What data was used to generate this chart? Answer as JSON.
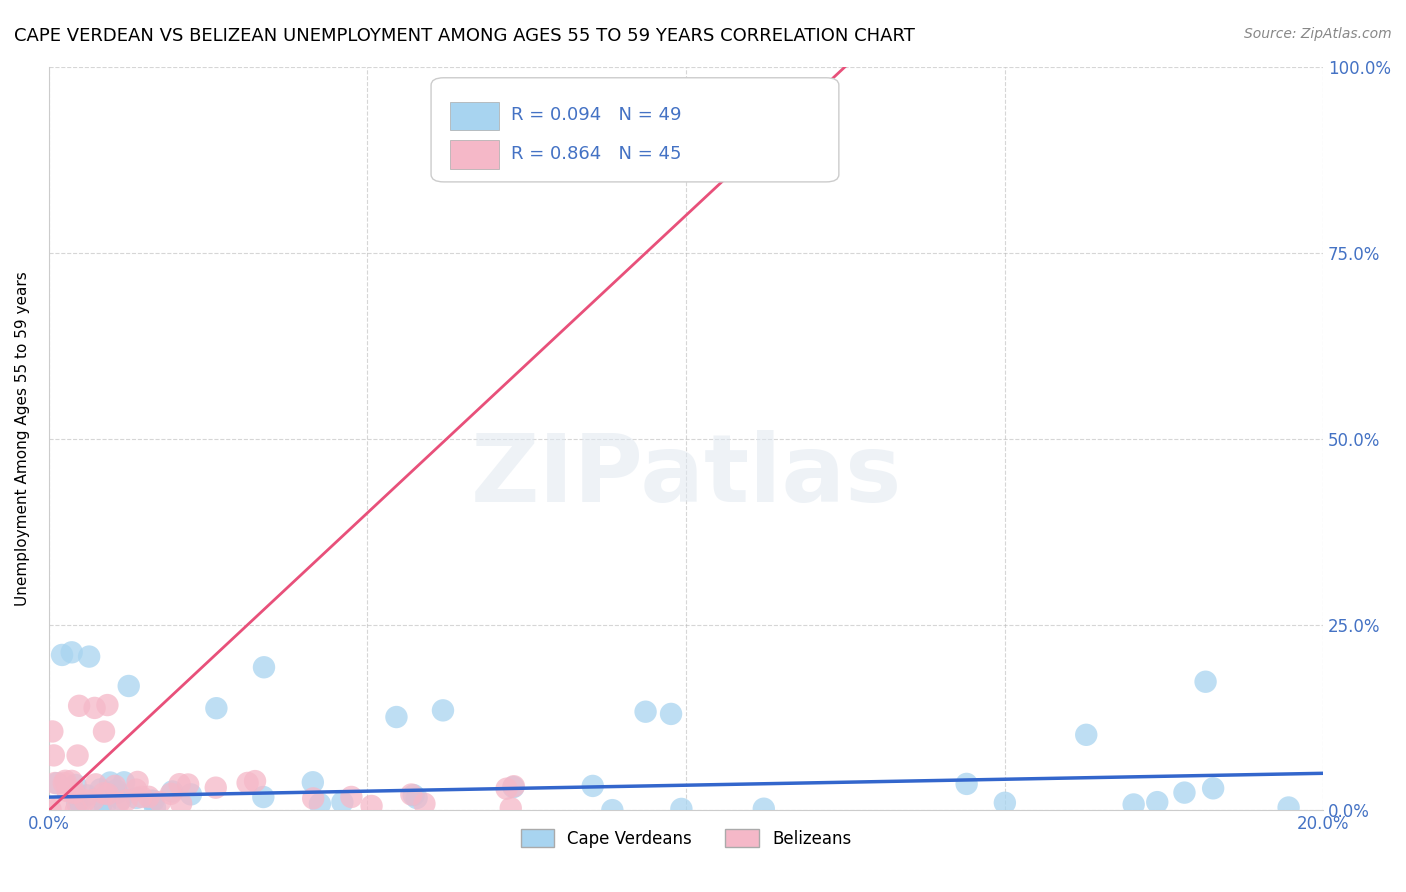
{
  "title": "CAPE VERDEAN VS BELIZEAN UNEMPLOYMENT AMONG AGES 55 TO 59 YEARS CORRELATION CHART",
  "source": "Source: ZipAtlas.com",
  "ylabel": "Unemployment Among Ages 55 to 59 years",
  "xlim": [
    0.0,
    0.2
  ],
  "ylim": [
    0.0,
    1.0
  ],
  "xticks": [
    0.0,
    0.05,
    0.1,
    0.15,
    0.2
  ],
  "xticklabels": [
    "0.0%",
    "",
    "",
    "",
    "20.0%"
  ],
  "yticks": [
    0.0,
    0.25,
    0.5,
    0.75,
    1.0
  ],
  "yticklabels_right": [
    "0.0%",
    "25.0%",
    "50.0%",
    "75.0%",
    "100.0%"
  ],
  "cape_verdean_color": "#a8d4f0",
  "belizean_color": "#f5b8c8",
  "cape_verdean_line_color": "#3366cc",
  "belizean_line_color": "#e8507a",
  "R_cape_verdean": 0.094,
  "N_cape_verdean": 49,
  "R_belizean": 0.864,
  "N_belizean": 45,
  "legend_label_cape": "Cape Verdeans",
  "legend_label_belizean": "Belizeans",
  "background_color": "#ffffff",
  "grid_color": "#bbbbbb",
  "title_fontsize": 13,
  "axis_label_color": "#4472c4",
  "watermark": "ZIPatlas",
  "cv_line_x0": 0.0,
  "cv_line_y0": 0.018,
  "cv_line_x1": 0.2,
  "cv_line_y1": 0.05,
  "bz_line_x0": 0.0,
  "bz_line_y0": 0.0,
  "bz_line_x1": 0.125,
  "bz_line_y1": 1.0
}
